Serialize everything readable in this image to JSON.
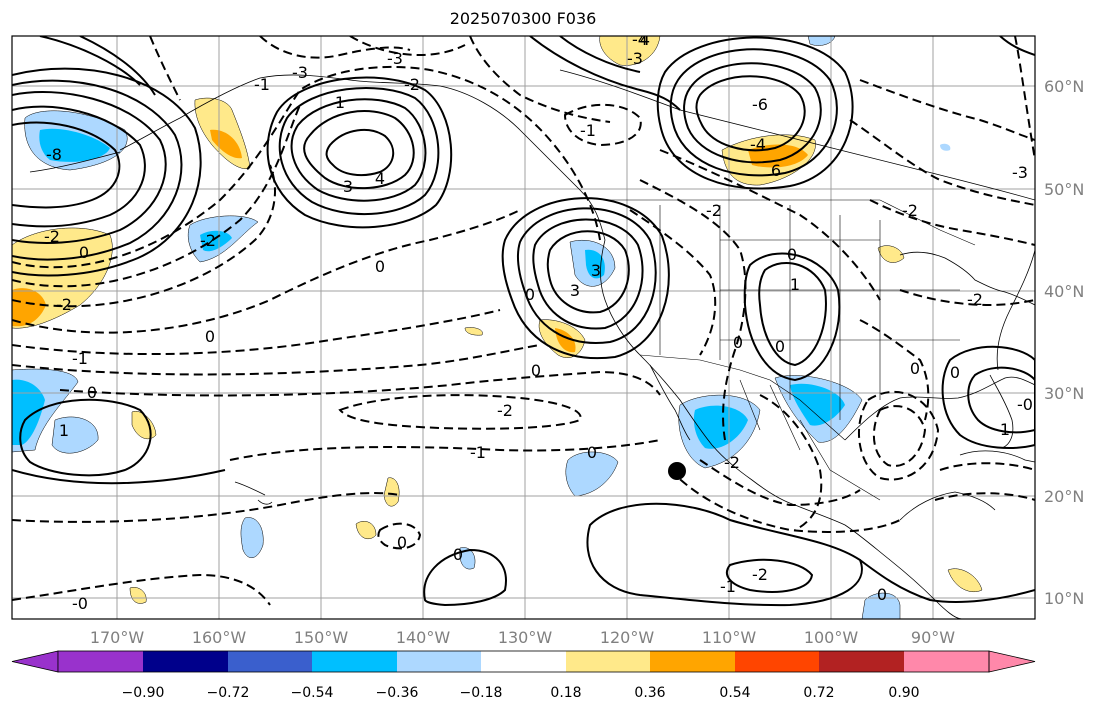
{
  "title": "2025070300 F036",
  "lat_labels": [
    "60°N",
    "50°N",
    "40°N",
    "30°N",
    "20°N",
    "10°N"
  ],
  "lon_labels": [
    "170°W",
    "160°W",
    "150°W",
    "140°W",
    "130°W",
    "120°W",
    "110°W",
    "100°W",
    "90°W"
  ],
  "colorbar": {
    "tick_labels": [
      "−0.90",
      "−0.72",
      "−0.54",
      "−0.36",
      "−0.18",
      "0.18",
      "0.36",
      "0.54",
      "0.72",
      "0.90"
    ],
    "colors": [
      "#9932cc",
      "#00008b",
      "#3a5fcd",
      "#00bfff",
      "#add8ff",
      "#ffffff",
      "#ffe98a",
      "#ffa500",
      "#ff4500",
      "#b22222",
      "#ff88aa"
    ]
  },
  "contour_labels": [
    {
      "text": "-3"
    },
    {
      "text": "-3"
    },
    {
      "text": "4"
    },
    {
      "text": "-3"
    },
    {
      "text": "-2"
    },
    {
      "text": "-1"
    },
    {
      "text": "1"
    },
    {
      "text": "3"
    },
    {
      "text": "4"
    },
    {
      "text": "0"
    },
    {
      "text": "3"
    },
    {
      "text": "-4"
    },
    {
      "text": "-6"
    },
    {
      "text": "-8"
    },
    {
      "text": "-2"
    },
    {
      "text": "0"
    },
    {
      "text": "-2"
    },
    {
      "text": "-1"
    },
    {
      "text": "0"
    },
    {
      "text": "1"
    },
    {
      "text": "0"
    },
    {
      "text": "-2"
    },
    {
      "text": "-1"
    },
    {
      "text": "-2"
    },
    {
      "text": "0"
    },
    {
      "text": "-1"
    },
    {
      "text": "3"
    },
    {
      "text": "6"
    },
    {
      "text": "-4"
    },
    {
      "text": "-2"
    },
    {
      "text": "0"
    },
    {
      "text": "0"
    },
    {
      "text": "-2"
    },
    {
      "text": "0"
    },
    {
      "text": "0"
    },
    {
      "text": "0"
    },
    {
      "text": "-3"
    },
    {
      "text": "-2"
    },
    {
      "text": "0"
    },
    {
      "text": "0"
    },
    {
      "text": "-1"
    },
    {
      "text": "-2"
    },
    {
      "text": "-2"
    },
    {
      "text": "0"
    },
    {
      "text": "1"
    },
    {
      "text": "0"
    },
    {
      "text": "-0"
    },
    {
      "text": "0"
    },
    {
      "text": "1"
    },
    {
      "text": "-0"
    }
  ]
}
